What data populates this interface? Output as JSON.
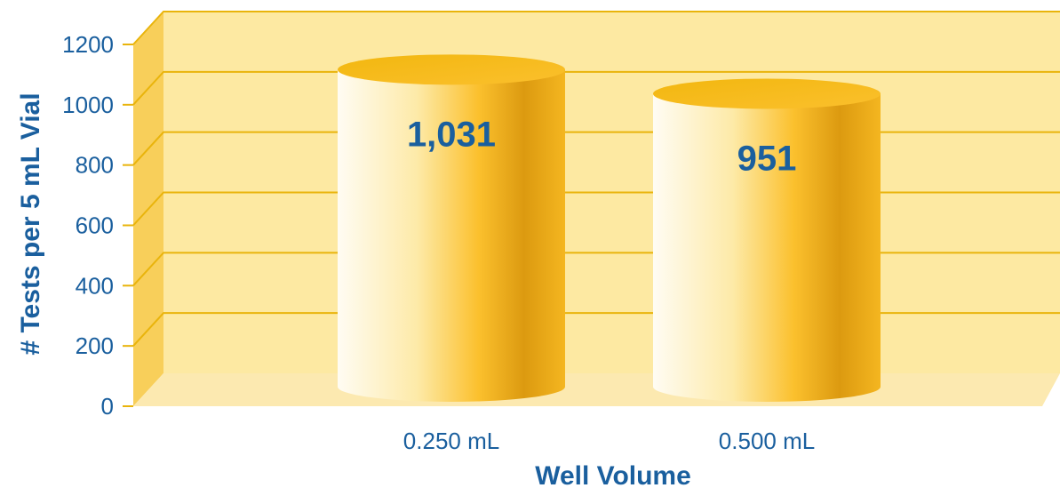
{
  "chart_data": {
    "type": "bar",
    "categories": [
      "0.250 mL",
      "0.500 mL"
    ],
    "values": [
      1031,
      951
    ],
    "data_labels": [
      "1,031",
      "951"
    ],
    "xlabel": "Well Volume",
    "ylabel": "# Tests per 5 mL Vial",
    "ylim": [
      0,
      1200
    ],
    "yticks": [
      0,
      200,
      400,
      600,
      800,
      1000,
      1200
    ],
    "grid": true,
    "style": "3d-cylinder",
    "colors": {
      "background": "#fde9a2",
      "floor": "#fce9b0",
      "side_wall": "#f8cf5a",
      "gridline": "#e9b40c",
      "bar_light": "#fffaf0",
      "bar_mid": "#fbc02d",
      "bar_dark": "#d9940f",
      "text": "#1a5f9e"
    }
  }
}
